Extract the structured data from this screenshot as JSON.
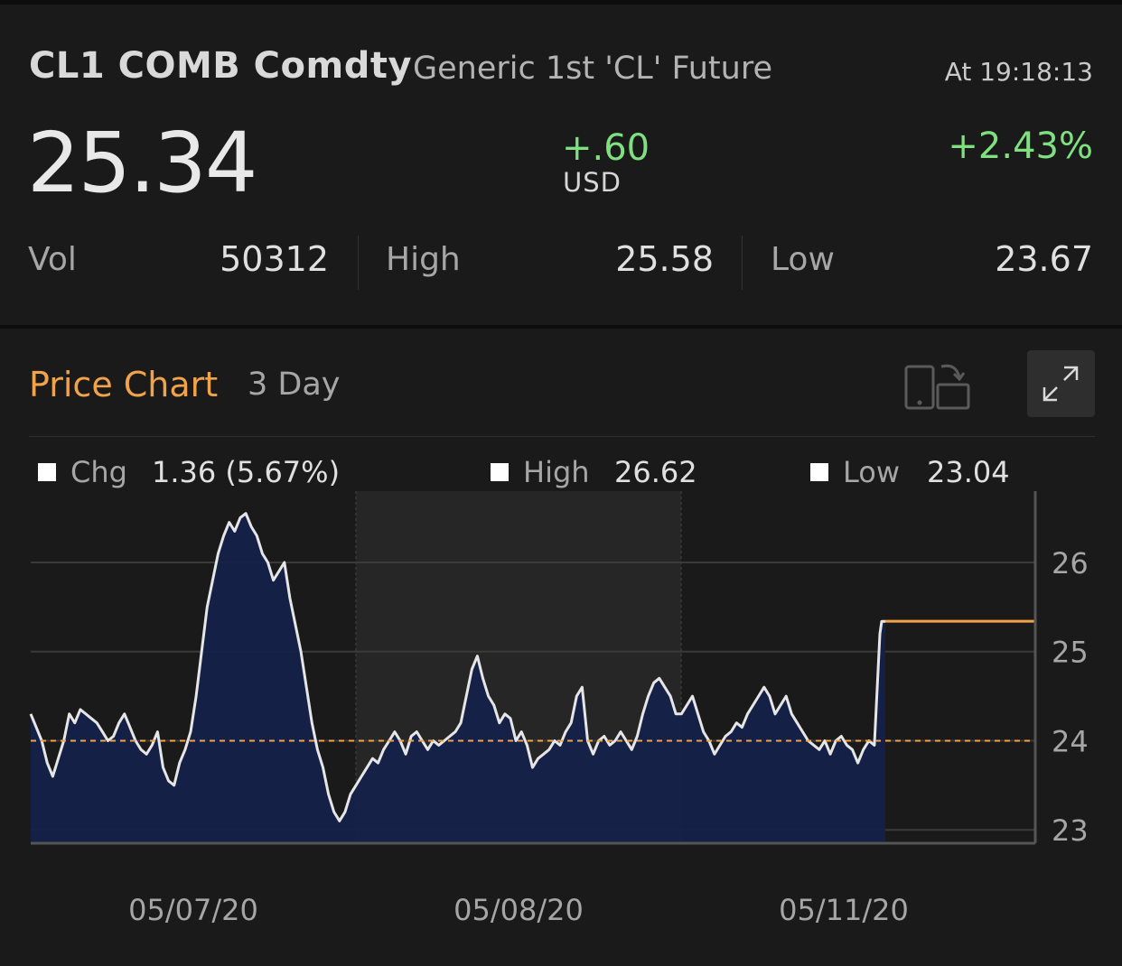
{
  "quote": {
    "ticker": "CL1 COMB Comdty",
    "description": "Generic 1st 'CL' Future",
    "time": "At 19:18:13",
    "price": "25.34",
    "change": "+.60",
    "currency": "USD",
    "change_pct": "+2.43%",
    "vol_label": "Vol",
    "vol": "50312",
    "high_label": "High",
    "high": "25.58",
    "low_label": "Low",
    "low": "23.67"
  },
  "price_chart": {
    "title": "Price Chart",
    "range": "3 Day",
    "legend": {
      "chg_label": "Chg",
      "chg_value": "1.36 (5.67%)",
      "high_label": "High",
      "high_value": "26.62",
      "low_label": "Low",
      "low_value": "23.04"
    }
  },
  "colors": {
    "up": "#7fe07f",
    "accent": "#f0a34a",
    "area": "#13214a",
    "line": "#e6e6e6"
  },
  "icons": [
    "rotate-screen-icon",
    "expand-icon"
  ],
  "chart_data": {
    "type": "area",
    "x_labels": [
      "05/07/20",
      "05/08/20",
      "05/11/20"
    ],
    "y_ticks": [
      23,
      24,
      25,
      26
    ],
    "ylim": [
      22.85,
      26.8
    ],
    "reference_line": 24.0,
    "last_price": 25.34,
    "series": [
      {
        "values": [
          24.3,
          24.15,
          24.0,
          23.75,
          23.6,
          23.8,
          24.0,
          24.3,
          24.2,
          24.35,
          24.3,
          24.25,
          24.2,
          24.1,
          24.0,
          24.05,
          24.2,
          24.3,
          24.15,
          24.0,
          23.9,
          23.85,
          23.95,
          24.1,
          23.7,
          23.55,
          23.5,
          23.75,
          23.9,
          24.1,
          24.5,
          25.0,
          25.5,
          25.8,
          26.1,
          26.3,
          26.45,
          26.35,
          26.5,
          26.55,
          26.4,
          26.3,
          26.1,
          26.0,
          25.8,
          25.9,
          26.0,
          25.6,
          25.3,
          25.0,
          24.6,
          24.2,
          23.9,
          23.7,
          23.4,
          23.2,
          23.1,
          23.2,
          23.4,
          23.5,
          23.6,
          23.7,
          23.8,
          23.75,
          23.9,
          24.0,
          24.1,
          24.0,
          23.85,
          24.05,
          24.1,
          24.0,
          23.9,
          24.0,
          23.95,
          24.0,
          24.05,
          24.1,
          24.2,
          24.5,
          24.8,
          24.95,
          24.7,
          24.5,
          24.4,
          24.2,
          24.3,
          24.25,
          24.0,
          24.1,
          23.95,
          23.7,
          23.8,
          23.85,
          23.9,
          24.0,
          23.95,
          24.1,
          24.2,
          24.5,
          24.6,
          24.0,
          23.85,
          24.0,
          24.05,
          23.95,
          24.0,
          24.1,
          24.0,
          23.9,
          24.05,
          24.3,
          24.5,
          24.65,
          24.7,
          24.6,
          24.5,
          24.3,
          24.3,
          24.4,
          24.5,
          24.3,
          24.1,
          24.0,
          23.85,
          23.95,
          24.05,
          24.1,
          24.2,
          24.15,
          24.3,
          24.4,
          24.5,
          24.6,
          24.5,
          24.3,
          24.4,
          24.5,
          24.3,
          24.2,
          24.1,
          24.0,
          23.95,
          23.9,
          24.0,
          23.85,
          24.0,
          24.05,
          23.95,
          23.9,
          23.75,
          23.9,
          24.0,
          23.95,
          25.2,
          25.34,
          25.34,
          25.34
        ]
      }
    ]
  }
}
